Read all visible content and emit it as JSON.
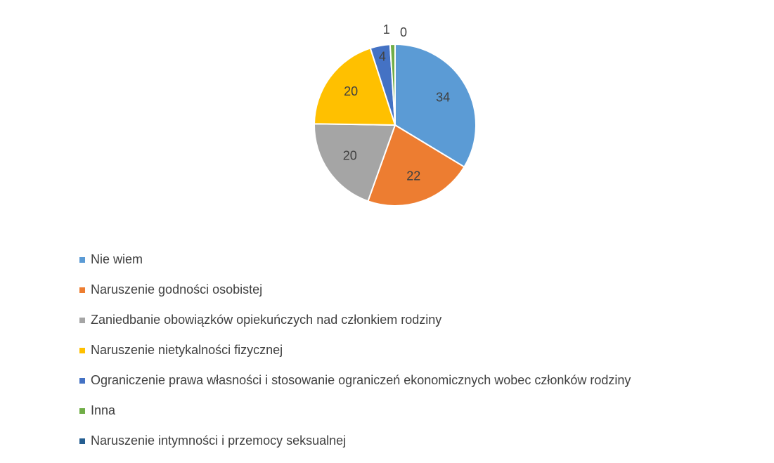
{
  "chart_data": {
    "type": "pie",
    "categories": [
      "Nie wiem",
      "Naruszenie godności osobistej",
      "Zaniedbanie obowiązków opiekuńczych nad członkiem rodziny",
      "Naruszenie nietykalności fizycznej",
      "Ograniczenie prawa własności i stosowanie ograniczeń ekonomicznych wobec członków rodziny",
      "Inna",
      "Naruszenie intymności i przemocy seksualnej"
    ],
    "values": [
      34,
      22,
      20,
      20,
      4,
      1,
      0
    ],
    "colors": [
      "#5b9bd5",
      "#ed7d31",
      "#a5a5a5",
      "#ffc000",
      "#4472c4",
      "#70ad47",
      "#255e91"
    ],
    "legend": "bottom"
  }
}
